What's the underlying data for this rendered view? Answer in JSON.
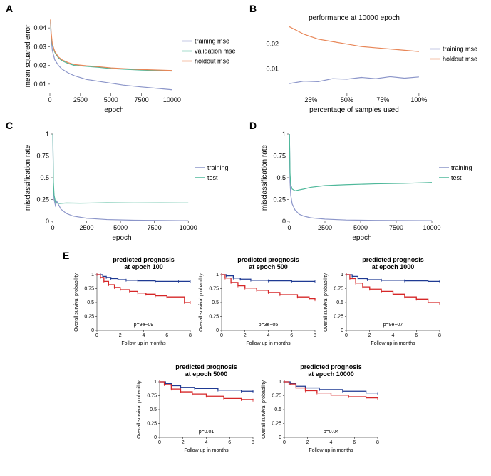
{
  "colors": {
    "training": "#8b95c9",
    "validation": "#4eb89a",
    "holdout": "#e88657",
    "test": "#4eb89a",
    "km_good": "#1f3a93",
    "km_bad": "#d62728",
    "axis": "#000000",
    "bg": "#ffffff"
  },
  "panelA": {
    "label": "A",
    "ylabel": "mean squared error",
    "xlabel": "epoch",
    "xlim": [
      0,
      10500
    ],
    "ylim": [
      0.005,
      0.045
    ],
    "xticks": [
      0,
      2500,
      5000,
      7500,
      10000
    ],
    "yticks": [
      0.01,
      0.02,
      0.03,
      0.04
    ],
    "legend": [
      "training mse",
      "validation mse",
      "holdout mse"
    ],
    "series": {
      "training": [
        [
          50,
          0.043
        ],
        [
          100,
          0.035
        ],
        [
          200,
          0.028
        ],
        [
          400,
          0.023
        ],
        [
          700,
          0.02
        ],
        [
          1000,
          0.018
        ],
        [
          1500,
          0.016
        ],
        [
          2000,
          0.0145
        ],
        [
          3000,
          0.0125
        ],
        [
          4000,
          0.0115
        ],
        [
          5000,
          0.0105
        ],
        [
          6000,
          0.0095
        ],
        [
          7500,
          0.0085
        ],
        [
          10000,
          0.007
        ]
      ],
      "validation": [
        [
          50,
          0.044
        ],
        [
          100,
          0.037
        ],
        [
          200,
          0.031
        ],
        [
          400,
          0.027
        ],
        [
          700,
          0.024
        ],
        [
          1000,
          0.0225
        ],
        [
          1500,
          0.021
        ],
        [
          2000,
          0.02
        ],
        [
          3000,
          0.0195
        ],
        [
          4000,
          0.019
        ],
        [
          5000,
          0.0183
        ],
        [
          6000,
          0.018
        ],
        [
          7500,
          0.0175
        ],
        [
          10000,
          0.017
        ]
      ],
      "holdout": [
        [
          50,
          0.0445
        ],
        [
          100,
          0.038
        ],
        [
          200,
          0.0315
        ],
        [
          400,
          0.0275
        ],
        [
          700,
          0.0245
        ],
        [
          1000,
          0.023
        ],
        [
          1500,
          0.0215
        ],
        [
          2000,
          0.0205
        ],
        [
          3000,
          0.0198
        ],
        [
          4000,
          0.0193
        ],
        [
          5000,
          0.0187
        ],
        [
          6000,
          0.0183
        ],
        [
          7500,
          0.0178
        ],
        [
          10000,
          0.0173
        ]
      ]
    }
  },
  "panelB": {
    "label": "B",
    "title": "performance at 10000 epoch",
    "ylabel": "",
    "xlabel": "percentage of samples used",
    "xlim": [
      5,
      105
    ],
    "ylim": [
      0,
      0.028
    ],
    "xticks": [
      25,
      50,
      75,
      100
    ],
    "xtick_labels": [
      "25%",
      "50%",
      "75%",
      "100%"
    ],
    "yticks": [
      0.01,
      0.02
    ],
    "legend": [
      "training mse",
      "holdout mse"
    ],
    "series": {
      "training": [
        [
          10,
          0.004
        ],
        [
          20,
          0.005
        ],
        [
          30,
          0.0048
        ],
        [
          40,
          0.006
        ],
        [
          50,
          0.0058
        ],
        [
          60,
          0.0065
        ],
        [
          70,
          0.006
        ],
        [
          80,
          0.0068
        ],
        [
          90,
          0.0062
        ],
        [
          100,
          0.0067
        ]
      ],
      "holdout": [
        [
          10,
          0.027
        ],
        [
          20,
          0.024
        ],
        [
          30,
          0.022
        ],
        [
          40,
          0.021
        ],
        [
          50,
          0.02
        ],
        [
          60,
          0.019
        ],
        [
          70,
          0.0185
        ],
        [
          80,
          0.018
        ],
        [
          90,
          0.0175
        ],
        [
          100,
          0.017
        ]
      ]
    }
  },
  "panelC": {
    "label": "C",
    "ylabel": "misclassification rate",
    "xlabel": "epoch",
    "xlim": [
      0,
      10200
    ],
    "ylim": [
      0,
      1.0
    ],
    "xticks": [
      0,
      2500,
      5000,
      7500,
      10000
    ],
    "yticks": [
      0.0,
      0.25,
      0.5,
      0.75,
      1.0
    ],
    "legend": [
      "training",
      "test"
    ],
    "series": {
      "training": [
        [
          10,
          1.0
        ],
        [
          50,
          0.4
        ],
        [
          100,
          0.25
        ],
        [
          200,
          0.18
        ],
        [
          300,
          0.23
        ],
        [
          400,
          0.2
        ],
        [
          600,
          0.14
        ],
        [
          1000,
          0.09
        ],
        [
          1500,
          0.06
        ],
        [
          2500,
          0.035
        ],
        [
          4000,
          0.02
        ],
        [
          6000,
          0.012
        ],
        [
          10000,
          0.007
        ]
      ],
      "test": [
        [
          10,
          1.0
        ],
        [
          50,
          0.45
        ],
        [
          100,
          0.3
        ],
        [
          200,
          0.22
        ],
        [
          300,
          0.21
        ],
        [
          500,
          0.205
        ],
        [
          1000,
          0.21
        ],
        [
          2000,
          0.208
        ],
        [
          4000,
          0.212
        ],
        [
          6000,
          0.21
        ],
        [
          8000,
          0.211
        ],
        [
          10000,
          0.21
        ]
      ]
    }
  },
  "panelD": {
    "label": "D",
    "ylabel": "misclassification rate",
    "xlabel": "epoch",
    "xlim": [
      0,
      10200
    ],
    "ylim": [
      0,
      1.0
    ],
    "xticks": [
      0,
      2500,
      5000,
      7500,
      10000
    ],
    "yticks": [
      0.0,
      0.25,
      0.5,
      0.75,
      1.0
    ],
    "legend": [
      "training",
      "test"
    ],
    "series": {
      "training": [
        [
          10,
          1.0
        ],
        [
          50,
          0.45
        ],
        [
          100,
          0.3
        ],
        [
          200,
          0.2
        ],
        [
          400,
          0.13
        ],
        [
          700,
          0.08
        ],
        [
          1000,
          0.06
        ],
        [
          1500,
          0.04
        ],
        [
          2500,
          0.025
        ],
        [
          4000,
          0.015
        ],
        [
          6000,
          0.01
        ],
        [
          10000,
          0.007
        ]
      ],
      "test": [
        [
          10,
          1.0
        ],
        [
          50,
          0.55
        ],
        [
          100,
          0.42
        ],
        [
          200,
          0.37
        ],
        [
          400,
          0.35
        ],
        [
          700,
          0.36
        ],
        [
          1000,
          0.37
        ],
        [
          1500,
          0.39
        ],
        [
          2500,
          0.41
        ],
        [
          4000,
          0.42
        ],
        [
          6000,
          0.43
        ],
        [
          8000,
          0.435
        ],
        [
          10000,
          0.445
        ]
      ]
    }
  },
  "panelE": {
    "label": "E",
    "ylabel": "Overall survival probability",
    "xlabel": "Follow up in months",
    "xlim": [
      0,
      8
    ],
    "ylim": [
      0,
      1.0
    ],
    "xticks": [
      0,
      2,
      4,
      6,
      8
    ],
    "yticks": [
      0.0,
      0.25,
      0.5,
      0.75,
      1.0
    ],
    "plots": [
      {
        "title": "predicted prognosis\nat epoch 100",
        "pval": "p=9e−09",
        "good": [
          [
            0,
            1
          ],
          [
            0.3,
            1
          ],
          [
            0.5,
            0.97
          ],
          [
            0.8,
            0.95
          ],
          [
            1.2,
            0.93
          ],
          [
            1.8,
            0.91
          ],
          [
            2.5,
            0.9
          ],
          [
            3.5,
            0.89
          ],
          [
            5,
            0.88
          ],
          [
            7,
            0.88
          ],
          [
            8,
            0.88
          ]
        ],
        "bad": [
          [
            0,
            1
          ],
          [
            0.3,
            0.95
          ],
          [
            0.6,
            0.88
          ],
          [
            1,
            0.82
          ],
          [
            1.5,
            0.77
          ],
          [
            2,
            0.73
          ],
          [
            2.8,
            0.7
          ],
          [
            3.5,
            0.67
          ],
          [
            4.2,
            0.65
          ],
          [
            5,
            0.62
          ],
          [
            6,
            0.6
          ],
          [
            7.5,
            0.5
          ],
          [
            8,
            0.5
          ]
        ]
      },
      {
        "title": "predicted prognosis\nat epoch 500",
        "pval": "p=3e−05",
        "good": [
          [
            0,
            1
          ],
          [
            0.4,
            0.98
          ],
          [
            1,
            0.94
          ],
          [
            1.6,
            0.92
          ],
          [
            2.5,
            0.9
          ],
          [
            4,
            0.89
          ],
          [
            6,
            0.88
          ],
          [
            8,
            0.88
          ]
        ],
        "bad": [
          [
            0,
            1
          ],
          [
            0.3,
            0.94
          ],
          [
            0.8,
            0.86
          ],
          [
            1.4,
            0.8
          ],
          [
            2,
            0.76
          ],
          [
            3,
            0.72
          ],
          [
            4,
            0.68
          ],
          [
            5,
            0.64
          ],
          [
            6.5,
            0.6
          ],
          [
            7.5,
            0.57
          ],
          [
            8,
            0.55
          ]
        ]
      },
      {
        "title": "predicted prognosis\nat epoch 1000",
        "pval": "p=9e−07",
        "good": [
          [
            0,
            1
          ],
          [
            0.5,
            0.97
          ],
          [
            1,
            0.93
          ],
          [
            1.8,
            0.91
          ],
          [
            3,
            0.9
          ],
          [
            5,
            0.89
          ],
          [
            7,
            0.88
          ],
          [
            8,
            0.88
          ]
        ],
        "bad": [
          [
            0,
            1
          ],
          [
            0.3,
            0.93
          ],
          [
            0.8,
            0.85
          ],
          [
            1.4,
            0.78
          ],
          [
            2,
            0.74
          ],
          [
            3,
            0.7
          ],
          [
            4,
            0.65
          ],
          [
            5,
            0.6
          ],
          [
            6,
            0.56
          ],
          [
            7,
            0.5
          ],
          [
            8,
            0.48
          ]
        ]
      },
      {
        "title": "predicted prognosis\nat epoch 5000",
        "pval": "p=0.01",
        "good": [
          [
            0,
            1
          ],
          [
            0.5,
            0.97
          ],
          [
            1,
            0.93
          ],
          [
            1.8,
            0.9
          ],
          [
            3,
            0.88
          ],
          [
            5,
            0.85
          ],
          [
            7,
            0.83
          ],
          [
            8,
            0.82
          ]
        ],
        "bad": [
          [
            0,
            1
          ],
          [
            0.4,
            0.95
          ],
          [
            1,
            0.87
          ],
          [
            1.8,
            0.82
          ],
          [
            2.8,
            0.78
          ],
          [
            4,
            0.74
          ],
          [
            5.5,
            0.7
          ],
          [
            7,
            0.68
          ],
          [
            8,
            0.67
          ]
        ]
      },
      {
        "title": "predicted prognosis\nat epoch 10000",
        "pval": "p=0.04",
        "good": [
          [
            0,
            1
          ],
          [
            0.5,
            0.97
          ],
          [
            1,
            0.92
          ],
          [
            1.8,
            0.89
          ],
          [
            3,
            0.86
          ],
          [
            5,
            0.83
          ],
          [
            7,
            0.8
          ],
          [
            8,
            0.79
          ]
        ],
        "bad": [
          [
            0,
            1
          ],
          [
            0.4,
            0.96
          ],
          [
            1,
            0.89
          ],
          [
            1.8,
            0.84
          ],
          [
            2.8,
            0.8
          ],
          [
            4,
            0.76
          ],
          [
            5.5,
            0.73
          ],
          [
            7,
            0.71
          ],
          [
            8,
            0.7
          ]
        ]
      }
    ]
  }
}
